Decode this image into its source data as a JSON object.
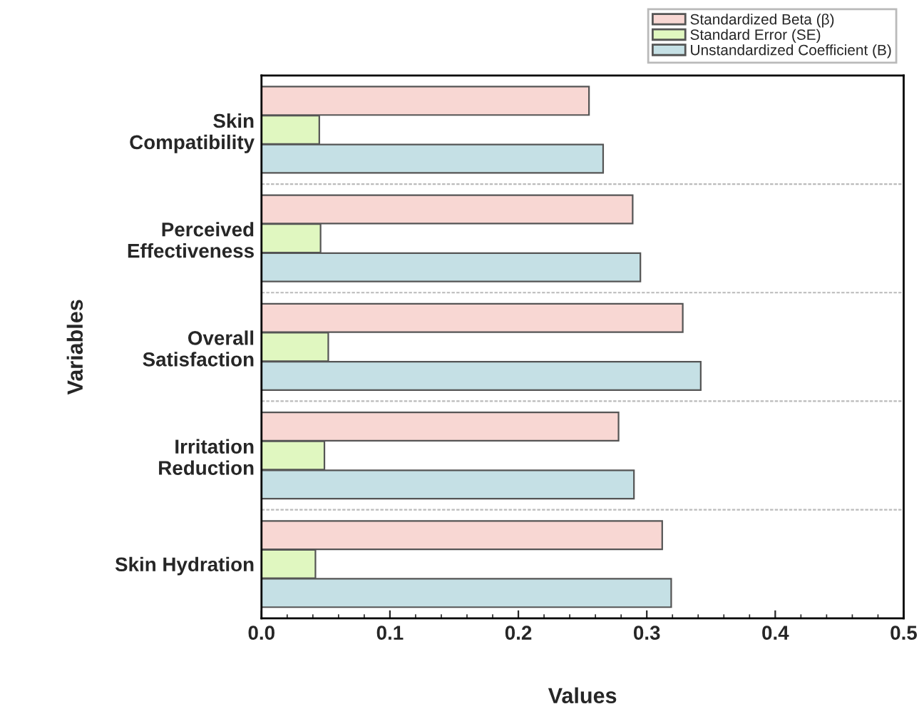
{
  "chart_data": {
    "type": "bar",
    "orientation": "horizontal",
    "xlabel": "Values",
    "ylabel": "Variables",
    "categories": [
      "Skin\nCompatibility",
      "Perceived\nEffectiveness",
      "Overall\nSatisfaction",
      "Irritation\nReduction",
      "Skin Hydration"
    ],
    "series": [
      {
        "name": "Standardized Beta (β)",
        "color": "#f8d7d3",
        "values": [
          0.255,
          0.289,
          0.328,
          0.278,
          0.312
        ]
      },
      {
        "name": "Standard Error (SE)",
        "color": "#e0f7c0",
        "values": [
          0.045,
          0.046,
          0.052,
          0.049,
          0.042
        ]
      },
      {
        "name": "Unstandardized Coefficient (B)",
        "color": "#c5e0e5",
        "values": [
          0.266,
          0.295,
          0.342,
          0.29,
          0.319
        ]
      }
    ],
    "xlim": [
      0,
      0.5
    ],
    "xticks": [
      {
        "value": 0,
        "label": "0.0"
      },
      0.1,
      0.2,
      0.3,
      0.4,
      0.5
    ],
    "grid": "y",
    "legend": "top right"
  }
}
